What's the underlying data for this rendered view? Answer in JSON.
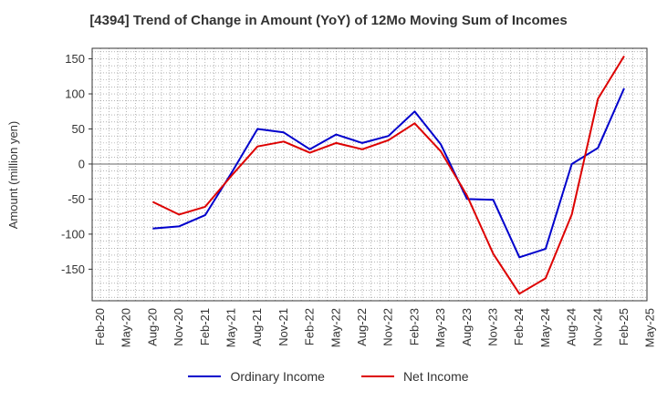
{
  "chart_data": {
    "type": "line",
    "title": "[4394]  Trend of Change in Amount (YoY) of 12Mo Moving Sum of Incomes",
    "xlabel": "",
    "ylabel": "Amount (million yen)",
    "categories": [
      "Feb-20",
      "May-20",
      "Aug-20",
      "Nov-20",
      "Feb-21",
      "May-21",
      "Aug-21",
      "Nov-21",
      "Feb-22",
      "May-22",
      "Aug-22",
      "Nov-22",
      "Feb-23",
      "May-23",
      "Aug-23",
      "Nov-23",
      "Feb-24",
      "May-24",
      "Aug-24",
      "Nov-24",
      "Feb-25",
      "May-25"
    ],
    "ylim": [
      -195,
      165
    ],
    "yticks": [
      150,
      100,
      50,
      0,
      -50,
      -100,
      -150
    ],
    "grid": true,
    "legend_position": "bottom",
    "series": [
      {
        "name": "Ordinary Income",
        "color": "#0000cc",
        "values": [
          null,
          null,
          -92,
          -89,
          -73,
          -13,
          50,
          45,
          21,
          42,
          30,
          40,
          75,
          28,
          -50,
          -51,
          -133,
          -121,
          0,
          23,
          108,
          null
        ]
      },
      {
        "name": "Net Income",
        "color": "#dd0000",
        "values": [
          null,
          null,
          -54,
          -72,
          -61,
          -17,
          25,
          32,
          16,
          30,
          21,
          34,
          58,
          18,
          -45,
          -128,
          -185,
          -163,
          -72,
          93,
          154,
          null
        ]
      }
    ]
  }
}
